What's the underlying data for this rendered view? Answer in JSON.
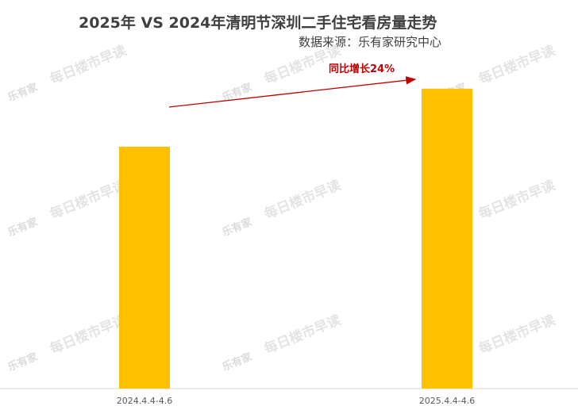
{
  "header": {
    "title": "2025年 VS 2024年清明节深圳二手住宅看房量走势",
    "source": "数据来源：乐有家研究中心"
  },
  "annotation": {
    "text": "同比增长24%",
    "color": "#c00000"
  },
  "watermark": {
    "brand": "乐有家",
    "slogan": "每日楼市早读"
  },
  "colors": {
    "bar": "#ffc000",
    "axis": "#d9d9d9",
    "arrow": "#c00000"
  },
  "chart_data": {
    "type": "bar",
    "title": "2025年 VS 2024年清明节深圳二手住宅看房量走势",
    "categories": [
      "2024.4.4-4.6",
      "2025.4.4-4.6"
    ],
    "values": [
      100,
      124
    ],
    "xlabel": "",
    "ylabel": "",
    "ylim": [
      0,
      140
    ],
    "grid": false,
    "legend": "none",
    "annotations": [
      "同比增长24%"
    ]
  }
}
